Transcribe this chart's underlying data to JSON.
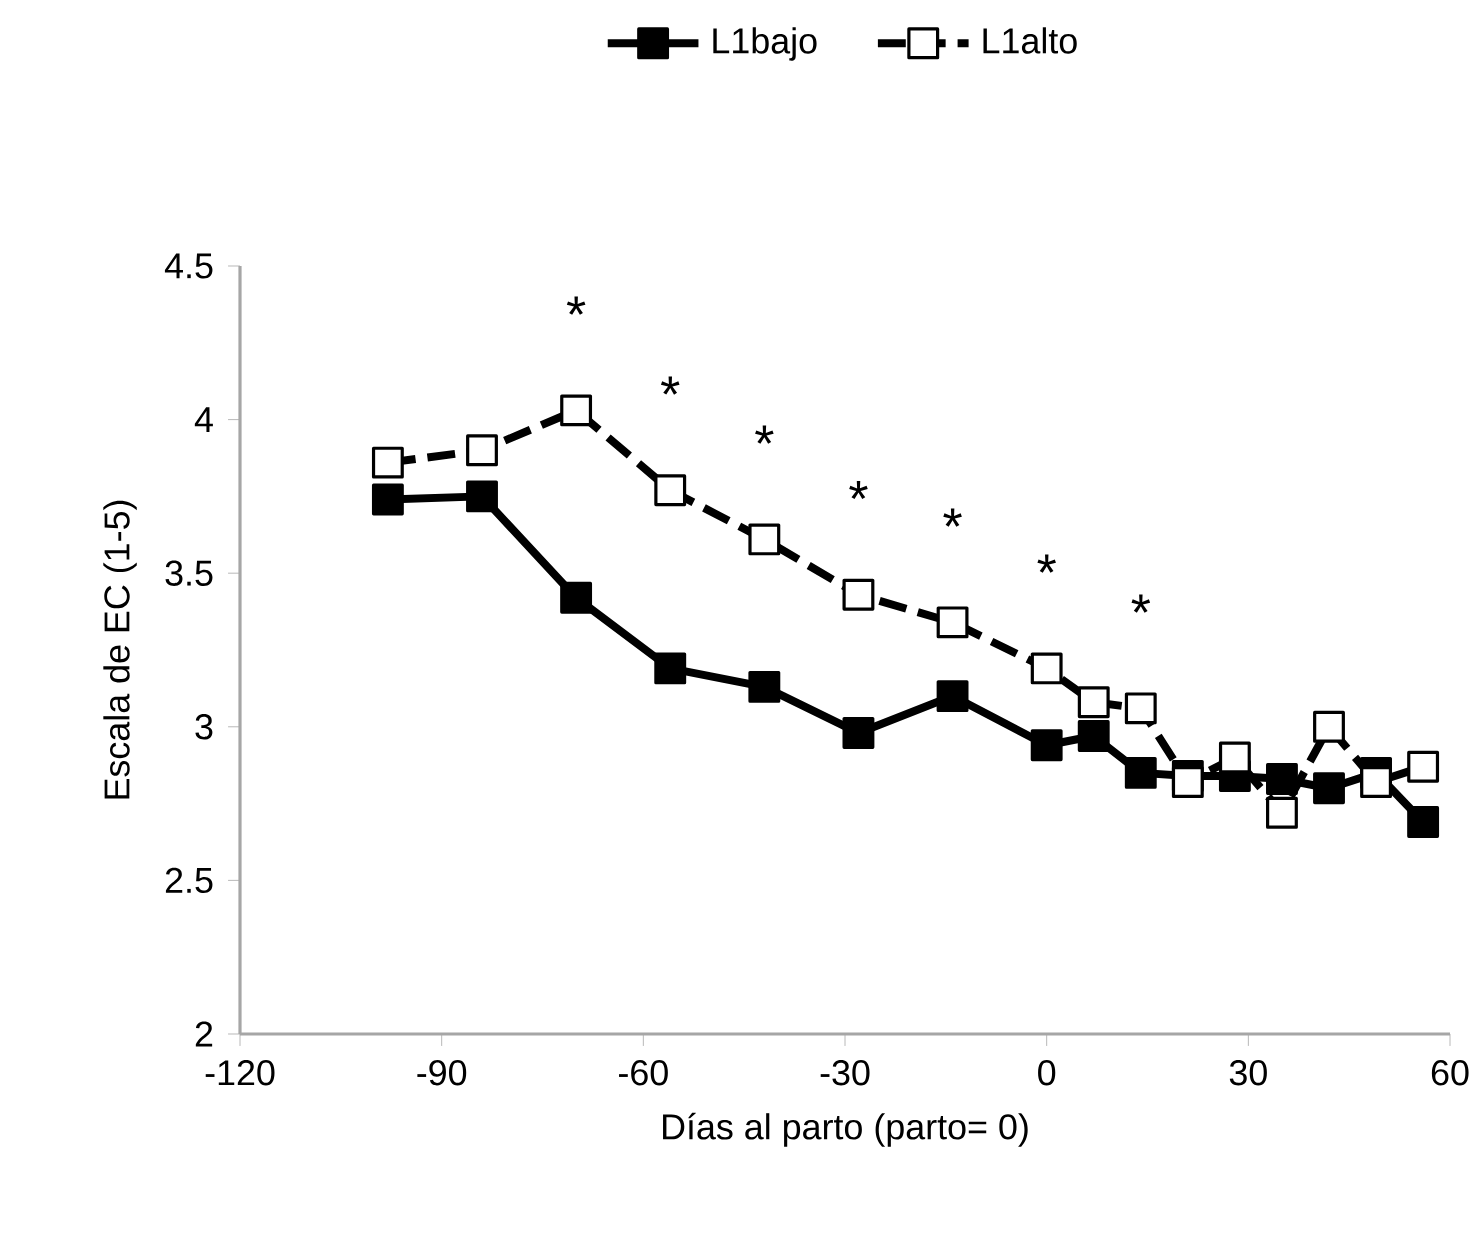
{
  "chart_data": {
    "type": "line",
    "xlabel": "Días al parto (parto= 0)",
    "ylabel": "Escala de EC (1-5)",
    "x": [
      -98,
      -84,
      -70,
      -56,
      -42,
      -28,
      -14,
      0,
      7,
      14,
      21,
      28,
      35,
      42,
      49,
      56
    ],
    "series": [
      {
        "name": "L1bajo",
        "color": "#000000",
        "line_style": "solid",
        "values": [
          3.74,
          3.75,
          3.42,
          3.19,
          3.13,
          2.98,
          3.1,
          2.94,
          2.97,
          2.85,
          2.84,
          2.84,
          2.83,
          2.8,
          2.85,
          2.69
        ]
      },
      {
        "name": "L1alto",
        "color": "#ffffff",
        "line_style": "dashed",
        "values": [
          3.86,
          3.9,
          4.03,
          3.77,
          3.61,
          3.43,
          3.34,
          3.19,
          3.08,
          3.06,
          2.82,
          2.9,
          2.72,
          3.0,
          2.82,
          2.87
        ]
      }
    ],
    "marker": "square",
    "xlim": [
      -120,
      60
    ],
    "xticks": [
      -120,
      -90,
      -60,
      -30,
      0,
      30,
      60
    ],
    "ylim": [
      2,
      4.5
    ],
    "yticks": [
      2,
      2.5,
      3,
      3.5,
      4,
      4.5
    ],
    "grid": false,
    "legend": "top",
    "annotations": [
      {
        "text": "*",
        "x": -70,
        "y": 4.03
      },
      {
        "text": "*",
        "x": -56,
        "y": 3.77
      },
      {
        "text": "*",
        "x": -42,
        "y": 3.61
      },
      {
        "text": "*",
        "x": -28,
        "y": 3.43
      },
      {
        "text": "*",
        "x": -14,
        "y": 3.34
      },
      {
        "text": "*",
        "x": 0,
        "y": 3.19
      },
      {
        "text": "*",
        "x": 14,
        "y": 3.06
      }
    ]
  }
}
